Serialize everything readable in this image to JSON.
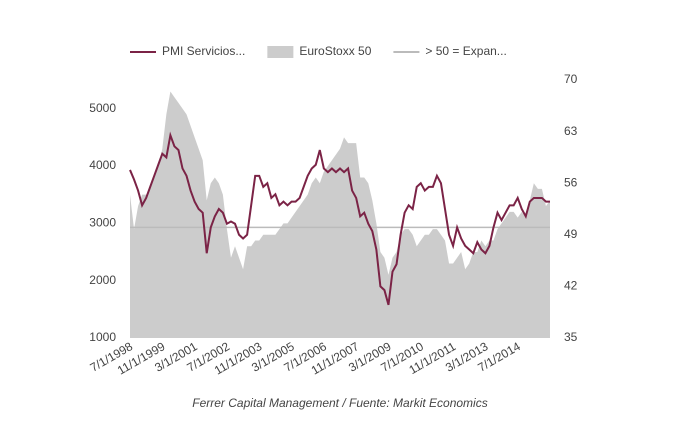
{
  "chart_data": {
    "type": "area-line",
    "footer": "Ferrer Capital Management / Fuente: Markit Economics",
    "categories": [
      "7/1/1998",
      null,
      null,
      null,
      null,
      null,
      null,
      null,
      "11/1/1999",
      null,
      null,
      null,
      null,
      null,
      null,
      null,
      "3/1/2001",
      null,
      null,
      null,
      null,
      null,
      null,
      null,
      "7/1/2002",
      null,
      null,
      null,
      null,
      null,
      null,
      null,
      "11/1/2003",
      null,
      null,
      null,
      null,
      null,
      null,
      null,
      "3/1/2005",
      null,
      null,
      null,
      null,
      null,
      null,
      null,
      "7/1/2006",
      null,
      null,
      null,
      null,
      null,
      null,
      null,
      "11/1/2007",
      null,
      null,
      null,
      null,
      null,
      null,
      null,
      "3/1/2009",
      null,
      null,
      null,
      null,
      null,
      null,
      null,
      "7/1/2010",
      null,
      null,
      null,
      null,
      null,
      null,
      null,
      "11/1/2011",
      null,
      null,
      null,
      null,
      null,
      null,
      null,
      "3/1/2013",
      null,
      null,
      null,
      null,
      null,
      null,
      null,
      "7/1/2014",
      null,
      null,
      null,
      null,
      null,
      null,
      null,
      null
    ],
    "series": [
      {
        "name": "PMI Servicios...",
        "kind": "line",
        "axis": "y2",
        "color": "#7b2346",
        "values": [
          57.8,
          56.5,
          55,
          53,
          54,
          55.5,
          57,
          58.5,
          60,
          59.5,
          62.5,
          61,
          60.5,
          58,
          57,
          55,
          53.5,
          52.5,
          52,
          46.5,
          50,
          51.5,
          52.5,
          52,
          50.5,
          50.8,
          50.5,
          49,
          48.5,
          49,
          53,
          57,
          57,
          55.5,
          56,
          54,
          54.5,
          53,
          53.5,
          53,
          53.5,
          53.5,
          54,
          55.5,
          57,
          58,
          58.5,
          60.5,
          58,
          57.5,
          58,
          57.5,
          58,
          57.5,
          58,
          55,
          54,
          51.5,
          52,
          50.5,
          49.5,
          47,
          42,
          41.5,
          39.5,
          44,
          45,
          49,
          52,
          53,
          52.5,
          55.5,
          56,
          55,
          55.5,
          55.5,
          57,
          56,
          52.5,
          49,
          47.5,
          50,
          48.5,
          47.5,
          47,
          46.5,
          48,
          47,
          46.5,
          47.5,
          50,
          52,
          51,
          52,
          53,
          53,
          54,
          52.5,
          51.5,
          53.5,
          54,
          54,
          54,
          53.5,
          53.5
        ]
      },
      {
        "name": "EuroStoxx 50",
        "kind": "area",
        "axis": "y",
        "color": "#cccccc",
        "values": [
          3500,
          2900,
          3300,
          3500,
          3500,
          3600,
          3800,
          4000,
          4300,
          4900,
          5300,
          5200,
          5100,
          5000,
          4900,
          4700,
          4500,
          4300,
          4100,
          3400,
          3700,
          3800,
          3700,
          3500,
          2900,
          2400,
          2600,
          2400,
          2200,
          2600,
          2600,
          2700,
          2700,
          2800,
          2800,
          2800,
          2800,
          2900,
          3000,
          3000,
          3100,
          3200,
          3300,
          3400,
          3500,
          3700,
          3800,
          3700,
          3900,
          4000,
          4100,
          4200,
          4300,
          4500,
          4400,
          4400,
          4400,
          3800,
          3800,
          3700,
          3400,
          3000,
          2500,
          2400,
          2100,
          2400,
          2500,
          2800,
          2900,
          2900,
          2800,
          2600,
          2700,
          2800,
          2800,
          2900,
          2900,
          2800,
          2700,
          2300,
          2300,
          2400,
          2500,
          2200,
          2300,
          2500,
          2500,
          2700,
          2600,
          2700,
          2700,
          2900,
          3000,
          3100,
          3200,
          3200,
          3100,
          3200,
          3100,
          3400,
          3700,
          3600,
          3600,
          3300,
          3400
        ]
      }
    ],
    "reference_line": {
      "name": "> 50 = Expan...",
      "value": 50,
      "axis": "y2",
      "color": "#bbbbbb"
    },
    "ylim": [
      1000,
      5500
    ],
    "yticks": [
      1000,
      2000,
      3000,
      4000,
      5000
    ],
    "y2lim": [
      35,
      70
    ],
    "y2ticks": [
      35,
      42,
      49,
      56,
      63,
      70
    ],
    "legend": "top"
  }
}
